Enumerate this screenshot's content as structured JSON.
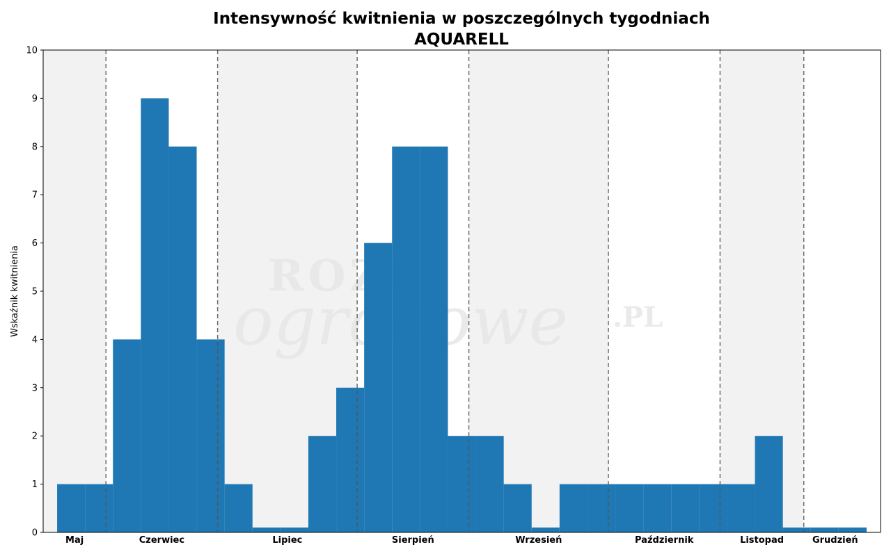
{
  "chart_data": {
    "type": "bar",
    "title": "Intensywność kwitnienia w poszczególnych tygodniach",
    "subtitle": "AQUARELL",
    "ylabel": "Wskaźnik kwitnienia",
    "xlabel": "",
    "ylim": [
      0,
      10
    ],
    "yticks": [
      0,
      1,
      2,
      3,
      4,
      5,
      6,
      7,
      8,
      9,
      10
    ],
    "grid": false,
    "bar_color": "#1f77b4",
    "band_color": "#f2f2f2",
    "divider_color": "#555555",
    "weeks_range": [
      18,
      48
    ],
    "week_values": [
      {
        "week": 19,
        "value": 1
      },
      {
        "week": 20,
        "value": 1
      },
      {
        "week": 21,
        "value": 4
      },
      {
        "week": 22,
        "value": 9
      },
      {
        "week": 23,
        "value": 8
      },
      {
        "week": 24,
        "value": 4
      },
      {
        "week": 25,
        "value": 1
      },
      {
        "week": 26,
        "value": 0.1
      },
      {
        "week": 27,
        "value": 0.1
      },
      {
        "week": 28,
        "value": 2
      },
      {
        "week": 29,
        "value": 3
      },
      {
        "week": 30,
        "value": 6
      },
      {
        "week": 31,
        "value": 8
      },
      {
        "week": 32,
        "value": 8
      },
      {
        "week": 33,
        "value": 2
      },
      {
        "week": 34,
        "value": 2
      },
      {
        "week": 35,
        "value": 1
      },
      {
        "week": 36,
        "value": 0.1
      },
      {
        "week": 37,
        "value": 1
      },
      {
        "week": 38,
        "value": 1
      },
      {
        "week": 39,
        "value": 1
      },
      {
        "week": 40,
        "value": 1
      },
      {
        "week": 41,
        "value": 1
      },
      {
        "week": 42,
        "value": 1
      },
      {
        "week": 43,
        "value": 1
      },
      {
        "week": 44,
        "value": 2
      },
      {
        "week": 45,
        "value": 0.1
      },
      {
        "week": 46,
        "value": 0.1
      },
      {
        "week": 47,
        "value": 0.1
      }
    ],
    "months": [
      {
        "label": "Maj",
        "start": 18,
        "end": 20.25,
        "shaded": true
      },
      {
        "label": "Czerwiec",
        "start": 20.25,
        "end": 24.25,
        "shaded": false
      },
      {
        "label": "Lipiec",
        "start": 24.25,
        "end": 29.25,
        "shaded": true
      },
      {
        "label": "Sierpień",
        "start": 29.25,
        "end": 33.25,
        "shaded": false
      },
      {
        "label": "Wrzesień",
        "start": 33.25,
        "end": 38.25,
        "shaded": true
      },
      {
        "label": "Październik",
        "start": 38.25,
        "end": 42.25,
        "shaded": false
      },
      {
        "label": "Listopad",
        "start": 42.25,
        "end": 45.25,
        "shaded": true
      },
      {
        "label": "Grudzień",
        "start": 45.25,
        "end": 47.5,
        "shaded": false
      }
    ],
    "month_boundaries": [
      20.25,
      24.25,
      29.25,
      33.25,
      38.25,
      42.25,
      45.25
    ]
  },
  "watermark": {
    "line1": "ROZE",
    "line2": "ogrodowe",
    "suffix": ".PL"
  }
}
